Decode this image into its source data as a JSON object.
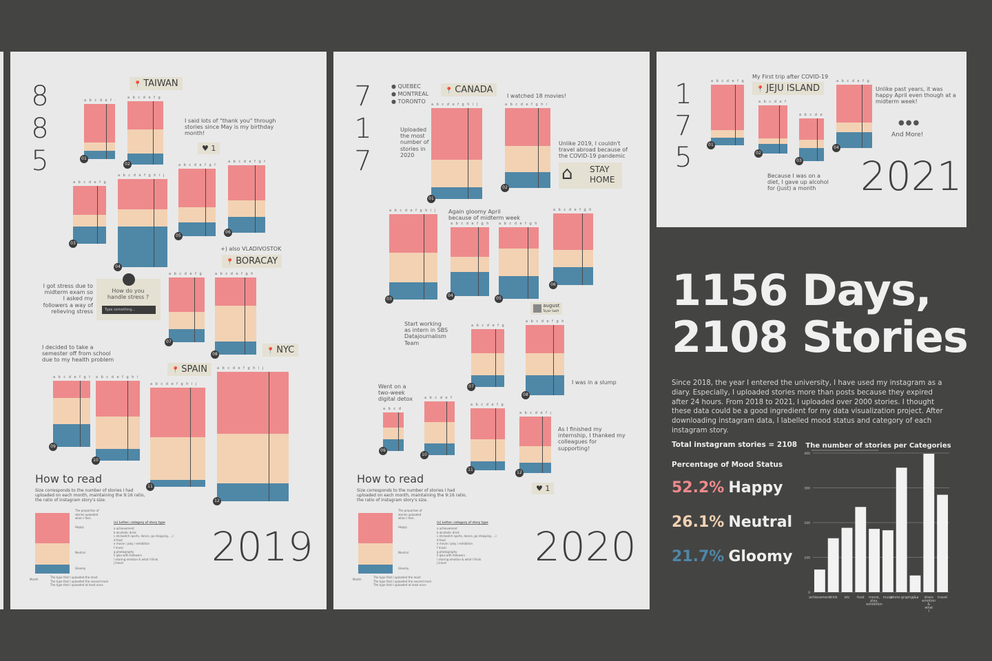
{
  "colors": {
    "happy": "#ee8a8c",
    "neutral": "#f2d2b3",
    "gloomy": "#4f87a7",
    "background": "#444443",
    "panel": "#e9e9e9"
  },
  "letters": "a b c d e f g h i j",
  "y2019": {
    "year": "2019",
    "total_digits": [
      "8",
      "8",
      "5"
    ],
    "months": [
      "01",
      "02",
      "03",
      "04",
      "05",
      "06",
      "07",
      "08",
      "09",
      "10",
      "11",
      "12"
    ],
    "locations": [
      "TAIWAN",
      "BORACAY",
      "SPAIN",
      "NYC"
    ],
    "heart_count": "1",
    "notes": {
      "thank_you": "I said lots of \"thank you\" through stories since May is my birthday month!",
      "vladivostok": "+) also VLADIVOSTOK",
      "stress": "I got stress due to midterm exam so I asked my followers a way of relieving stress",
      "question": "How do you handle stress ?",
      "type_placeholder": "Type something...",
      "semester": "I decided to take a semester off from school due to my health problem"
    },
    "how_to_read": "How to read",
    "how_to_read_sub": "Size corresponds to the number of stories I had uploaded on each month, maintaining the 9:16 ratio, the ratio of instagram story's size.",
    "legend": {
      "proportion": "The proportion of stories uploaded when I feel..",
      "happy": "Happy",
      "neutral": "Neutral",
      "gloomy": "Gloomy",
      "month": "Month",
      "letter_title": "(x) Letter: category of story type",
      "categories": [
        "a achievement",
        "b alcoholic drink",
        "c etc(watch sports, dance, go shopping, ...)",
        "d food",
        "e movie / play / exhibition",
        "f music",
        "g photography",
        "h q&a with followers",
        "i sharing emotion & what I think",
        "j travel"
      ],
      "lines": [
        "The type that I uploaded the most",
        "The type that I uploaded the second most",
        "The type that I uploaded at least once"
      ]
    }
  },
  "y2020": {
    "year": "2020",
    "total_digits": [
      "7",
      "1",
      "7"
    ],
    "months": [
      "01",
      "02",
      "03",
      "04",
      "05",
      "06",
      "07",
      "08",
      "09",
      "10",
      "11",
      "12"
    ],
    "locations": [
      "CANADA"
    ],
    "cities": [
      "QUEBEC",
      "MONTREAL",
      "TORONTO"
    ],
    "heart_count": "1",
    "notes": {
      "uploaded_most": "Uploaded the most number of stories in 2020",
      "movies": "I watched 18 movies!",
      "pandemic": "Unlike 2019, I couldn't travel abroad because of the COVID-19 pandemic",
      "stay": "STAY",
      "home": "HOME",
      "april": "Again gloomy April because of midterm week",
      "august": "august",
      "taylor": "Taylor Swift",
      "sbs": "Start working as intern in SBS Datajournalism Team",
      "detox": "Went on a two-week digital detox",
      "slump": "I was in a slump",
      "internship": "As I finished my internship, I thanked my colleagues for supporting!"
    },
    "how_to_read": "How to read",
    "how_to_read_sub": "Size corresponds to the number of stories I had uploaded on each month, maintaining the 9:16 ratio, the ratio of instagram story's size."
  },
  "y2021": {
    "year": "2021",
    "total_digits": [
      "1",
      "7",
      "5"
    ],
    "months": [
      "01",
      "02",
      "03",
      "04"
    ],
    "locations": [
      "JEJU ISLAND"
    ],
    "notes": {
      "first_trip": "My First trip after COVID-19",
      "april": "Unlike past years, it was happy April even though at a midterm week!",
      "dots": "●●●",
      "more": "And More!",
      "diet": "Because I was on a diet, I gave up alcohol for (just) a month"
    }
  },
  "headline": {
    "line1": "1156 Days,",
    "line2": "2108 Stories"
  },
  "description": "Since 2018, the year I entered the university, I have used my instagram as a diary. Especially, I uploaded stories more than posts because they expired after 24 hours. From 2018 to 2021, I uploaded over 2000 stories. I thought these data could be a good ingredient for my data visualization project. After downloading instagram data, I labelled mood status and category of each instagram story.",
  "total_label": "Total instagram stories = 2108",
  "mood_title": "Percentage of Mood Status",
  "moods": [
    {
      "pct": "52.2%",
      "label": "Happy",
      "color": "#ee8a8c"
    },
    {
      "pct": "26.1%",
      "label": "Neutral",
      "color": "#f2d2b3"
    },
    {
      "pct": "21.7%",
      "label": "Gloomy",
      "color": "#4f87a7"
    }
  ],
  "chart_data": {
    "type": "bar",
    "title": "The number of stories per Categories",
    "categories": [
      "achievement",
      "drink",
      "etc",
      "food",
      "movie, play, exhibition",
      "music",
      "photo-graphy",
      "q&a",
      "share emotion & what I think",
      "travel"
    ],
    "values": [
      65,
      155,
      185,
      245,
      182,
      178,
      358,
      48,
      398,
      280
    ],
    "ylim": [
      0,
      400
    ],
    "yticks": [
      "0",
      "100",
      "200",
      "300",
      "400"
    ],
    "grid": true
  },
  "monthly_2019": [
    {
      "h": 0.7,
      "n": 0.15,
      "g": 0.15
    },
    {
      "h": 0.45,
      "n": 0.38,
      "g": 0.17
    },
    {
      "h": 0.5,
      "n": 0.2,
      "g": 0.3
    },
    {
      "h": 0.34,
      "n": 0.2,
      "g": 0.46
    },
    {
      "h": 0.57,
      "n": 0.23,
      "g": 0.2
    },
    {
      "h": 0.52,
      "n": 0.25,
      "g": 0.23
    },
    {
      "h": 0.53,
      "n": 0.27,
      "g": 0.2
    },
    {
      "h": 0.37,
      "n": 0.46,
      "g": 0.17
    },
    {
      "h": 0.26,
      "n": 0.4,
      "g": 0.34
    },
    {
      "h": 0.45,
      "n": 0.4,
      "g": 0.15
    },
    {
      "h": 0.5,
      "n": 0.43,
      "g": 0.07
    },
    {
      "h": 0.48,
      "n": 0.38,
      "g": 0.14
    }
  ],
  "monthly_2020": [
    {
      "h": 0.57,
      "n": 0.3,
      "g": 0.13
    },
    {
      "h": 0.47,
      "n": 0.33,
      "g": 0.2
    },
    {
      "h": 0.45,
      "n": 0.35,
      "g": 0.2
    },
    {
      "h": 0.43,
      "n": 0.22,
      "g": 0.35
    },
    {
      "h": 0.3,
      "n": 0.38,
      "g": 0.32
    },
    {
      "h": 0.51,
      "n": 0.24,
      "g": 0.25
    },
    {
      "h": 0.42,
      "n": 0.38,
      "g": 0.2
    },
    {
      "h": 0.4,
      "n": 0.32,
      "g": 0.28
    },
    {
      "h": 0.4,
      "n": 0.3,
      "g": 0.3
    },
    {
      "h": 0.38,
      "n": 0.4,
      "g": 0.22
    },
    {
      "h": 0.5,
      "n": 0.35,
      "g": 0.15
    },
    {
      "h": 0.52,
      "n": 0.3,
      "g": 0.18
    }
  ],
  "monthly_2021": [
    {
      "h": 0.75,
      "n": 0.12,
      "g": 0.13
    },
    {
      "h": 0.68,
      "n": 0.12,
      "g": 0.2
    },
    {
      "h": 0.5,
      "n": 0.2,
      "g": 0.3
    },
    {
      "h": 0.6,
      "n": 0.15,
      "g": 0.25
    }
  ]
}
